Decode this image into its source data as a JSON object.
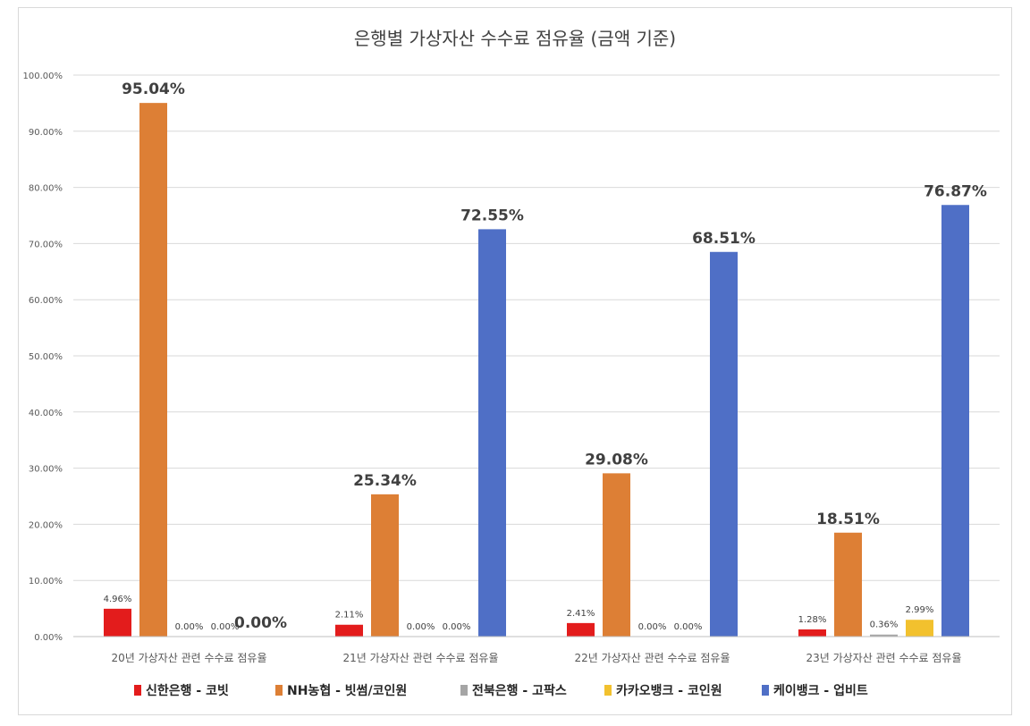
{
  "chart_data": {
    "type": "bar",
    "title": "은행별 가상자산 수수료 점유율 (금액 기준)",
    "xlabel": "",
    "ylabel": "",
    "ylim": [
      0,
      100
    ],
    "yticks": [
      "0.00%",
      "10.00%",
      "20.00%",
      "30.00%",
      "40.00%",
      "50.00%",
      "60.00%",
      "70.00%",
      "80.00%",
      "90.00%",
      "100.00%"
    ],
    "categories": [
      "20년 가상자산 관련 수수료 점유율",
      "21년 가상자산 관련 수수료 점유율",
      "22년 가상자산 관련 수수료 점유율",
      "23년 가상자산 관련 수수료 점유율"
    ],
    "series": [
      {
        "name": "신한은행 - 코빗",
        "color": "#e31c1c",
        "values": [
          4.96,
          2.11,
          2.41,
          1.28
        ],
        "labels": [
          "4.96%",
          "2.11%",
          "2.41%",
          "1.28%"
        ]
      },
      {
        "name": "NH농협 - 빗썸/코인원",
        "color": "#dd7f35",
        "values": [
          95.04,
          25.34,
          29.08,
          18.51
        ],
        "labels": [
          "95.04%",
          "25.34%",
          "29.08%",
          "18.51%"
        ]
      },
      {
        "name": "전북은행 - 고팍스",
        "color": "#a5a5a5",
        "values": [
          0,
          0,
          0,
          0.36
        ],
        "labels": [
          "0.00%",
          "0.00%",
          "0.00%",
          "0.36%"
        ]
      },
      {
        "name": "카카오뱅크 - 코인원",
        "color": "#f2c12e",
        "values": [
          0,
          0,
          0,
          2.99
        ],
        "labels": [
          "0.00%",
          "0.00%",
          "0.00%",
          "2.99%"
        ]
      },
      {
        "name": "케이뱅크 - 업비트",
        "color": "#4f6fc6",
        "values": [
          0,
          72.55,
          68.51,
          76.87
        ],
        "labels": [
          "0.00%",
          "72.55%",
          "68.51%",
          "76.87%"
        ]
      }
    ],
    "grid": true,
    "legend": "bottom"
  }
}
